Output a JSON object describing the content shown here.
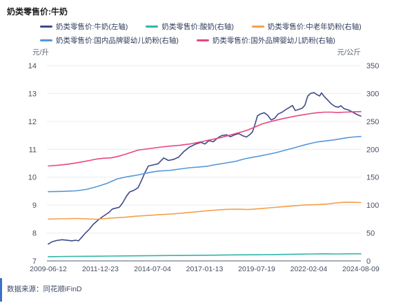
{
  "title": "奶类零售价:牛奶",
  "source_note": "数据来源：同花顺iFinD",
  "axes": {
    "left_unit": "元/升",
    "right_unit": "元/公斤",
    "left_ticks": [
      14,
      13,
      12,
      11,
      10,
      9,
      8,
      7
    ],
    "right_ticks": [
      350,
      300,
      250,
      200,
      150,
      100,
      50,
      0
    ],
    "x_ticks": [
      "2009-06-12",
      "2011-12-23",
      "2014-07-04",
      "2017-01-13",
      "2019-07-19",
      "2022-02-04",
      "2024-08-09"
    ]
  },
  "colors": {
    "grid": "#e8ebf3",
    "axis_line": "#a8adba",
    "tick_text": "#454e60",
    "accent_bar": "#3b6fc9"
  },
  "chart_data": {
    "type": "line",
    "title": "奶类零售价:牛奶",
    "x_range": [
      "2009-06-12",
      "2024-08-09"
    ],
    "x_note": "每个数据点的x为时间轴上0-1的比例位置",
    "left_axis": {
      "unit": "元/升",
      "min": 7,
      "max": 14
    },
    "right_axis": {
      "unit": "元/公斤",
      "min": 0,
      "max": 350
    },
    "grid": true,
    "legend_position": "top",
    "series": [
      {
        "key": "milk",
        "name": "奶类零售价:牛奶(左轴)",
        "axis": "left",
        "color": "#3c4a87",
        "points": [
          [
            0,
            7.6
          ],
          [
            0.011,
            7.68
          ],
          [
            0.026,
            7.73
          ],
          [
            0.044,
            7.76
          ],
          [
            0.06,
            7.74
          ],
          [
            0.075,
            7.72
          ],
          [
            0.088,
            7.74
          ],
          [
            0.097,
            7.72
          ],
          [
            0.108,
            7.86
          ],
          [
            0.119,
            8.0
          ],
          [
            0.13,
            8.12
          ],
          [
            0.143,
            8.3
          ],
          [
            0.159,
            8.46
          ],
          [
            0.172,
            8.57
          ],
          [
            0.185,
            8.67
          ],
          [
            0.194,
            8.74
          ],
          [
            0.205,
            8.86
          ],
          [
            0.219,
            8.9
          ],
          [
            0.227,
            8.92
          ],
          [
            0.238,
            9.08
          ],
          [
            0.249,
            9.3
          ],
          [
            0.26,
            9.47
          ],
          [
            0.274,
            9.53
          ],
          [
            0.287,
            9.62
          ],
          [
            0.298,
            9.88
          ],
          [
            0.309,
            10.16
          ],
          [
            0.32,
            10.4
          ],
          [
            0.336,
            10.44
          ],
          [
            0.351,
            10.48
          ],
          [
            0.369,
            10.69
          ],
          [
            0.384,
            10.6
          ],
          [
            0.402,
            10.64
          ],
          [
            0.417,
            10.72
          ],
          [
            0.433,
            10.91
          ],
          [
            0.45,
            11.07
          ],
          [
            0.47,
            11.18
          ],
          [
            0.488,
            11.25
          ],
          [
            0.501,
            11.19
          ],
          [
            0.514,
            11.31
          ],
          [
            0.528,
            11.27
          ],
          [
            0.541,
            11.4
          ],
          [
            0.554,
            11.49
          ],
          [
            0.57,
            11.52
          ],
          [
            0.583,
            11.45
          ],
          [
            0.596,
            11.52
          ],
          [
            0.609,
            11.56
          ],
          [
            0.623,
            11.48
          ],
          [
            0.634,
            11.44
          ],
          [
            0.645,
            11.53
          ],
          [
            0.653,
            11.62
          ],
          [
            0.662,
            11.92
          ],
          [
            0.669,
            12.2
          ],
          [
            0.678,
            12.26
          ],
          [
            0.691,
            12.31
          ],
          [
            0.702,
            12.22
          ],
          [
            0.713,
            12.05
          ],
          [
            0.724,
            12.11
          ],
          [
            0.735,
            12.26
          ],
          [
            0.748,
            12.33
          ],
          [
            0.762,
            12.44
          ],
          [
            0.773,
            12.51
          ],
          [
            0.781,
            12.57
          ],
          [
            0.79,
            12.39
          ],
          [
            0.801,
            12.43
          ],
          [
            0.812,
            12.47
          ],
          [
            0.821,
            12.58
          ],
          [
            0.83,
            12.91
          ],
          [
            0.839,
            13.0
          ],
          [
            0.85,
            13.03
          ],
          [
            0.859,
            12.96
          ],
          [
            0.868,
            12.91
          ],
          [
            0.874,
            13.02
          ],
          [
            0.883,
            12.89
          ],
          [
            0.894,
            12.76
          ],
          [
            0.905,
            12.63
          ],
          [
            0.918,
            12.53
          ],
          [
            0.929,
            12.51
          ],
          [
            0.936,
            12.56
          ],
          [
            0.947,
            12.45
          ],
          [
            0.958,
            12.42
          ],
          [
            0.969,
            12.36
          ],
          [
            0.98,
            12.29
          ],
          [
            0.991,
            12.23
          ],
          [
            1,
            12.19
          ]
        ]
      },
      {
        "key": "yogurt",
        "name": "奶类零售价:酸奶(右轴)",
        "axis": "right",
        "color": "#2eb5a5",
        "points": [
          [
            0,
            7.5
          ],
          [
            0.066,
            8.0
          ],
          [
            0.132,
            8.3
          ],
          [
            0.199,
            8.6
          ],
          [
            0.265,
            9.0
          ],
          [
            0.333,
            9.4
          ],
          [
            0.397,
            9.7
          ],
          [
            0.464,
            10.0
          ],
          [
            0.53,
            10.3
          ],
          [
            0.596,
            10.7
          ],
          [
            0.667,
            11.0
          ],
          [
            0.729,
            11.4
          ],
          [
            0.795,
            12.0
          ],
          [
            0.839,
            12.4
          ],
          [
            0.883,
            12.7
          ],
          [
            0.923,
            12.4
          ],
          [
            0.96,
            12.7
          ],
          [
            1,
            12.8
          ]
        ]
      },
      {
        "key": "middle-aged-powder",
        "name": "奶类零售价:中老年奶粉(右轴)",
        "axis": "right",
        "color": "#f4a04a",
        "points": [
          [
            0,
            75
          ],
          [
            0.044,
            75.5
          ],
          [
            0.088,
            76
          ],
          [
            0.128,
            75.2
          ],
          [
            0.155,
            74.6
          ],
          [
            0.181,
            75.8
          ],
          [
            0.21,
            77
          ],
          [
            0.243,
            78.2
          ],
          [
            0.278,
            80
          ],
          [
            0.313,
            81.2
          ],
          [
            0.353,
            82.8
          ],
          [
            0.393,
            84
          ],
          [
            0.428,
            85.6
          ],
          [
            0.464,
            87.5
          ],
          [
            0.499,
            89.4
          ],
          [
            0.534,
            91
          ],
          [
            0.57,
            92.4
          ],
          [
            0.605,
            92.6
          ],
          [
            0.64,
            92
          ],
          [
            0.676,
            93.6
          ],
          [
            0.711,
            95.2
          ],
          [
            0.746,
            96.8
          ],
          [
            0.781,
            98.4
          ],
          [
            0.817,
            100
          ],
          [
            0.843,
            100.6
          ],
          [
            0.87,
            101.2
          ],
          [
            0.896,
            102.2
          ],
          [
            0.927,
            104.2
          ],
          [
            0.954,
            105.2
          ],
          [
            0.976,
            105
          ],
          [
            1,
            104.6
          ]
        ]
      },
      {
        "key": "domestic-infant-formula",
        "name": "奶类零售价:国内品牌婴幼儿奶粉(右轴)",
        "axis": "right",
        "color": "#5496d8",
        "points": [
          [
            0,
            124
          ],
          [
            0.044,
            124.5
          ],
          [
            0.088,
            125.5
          ],
          [
            0.121,
            128
          ],
          [
            0.155,
            133
          ],
          [
            0.188,
            139
          ],
          [
            0.221,
            147
          ],
          [
            0.254,
            151
          ],
          [
            0.287,
            154
          ],
          [
            0.32,
            158
          ],
          [
            0.353,
            161
          ],
          [
            0.386,
            162
          ],
          [
            0.419,
            164.5
          ],
          [
            0.453,
            167
          ],
          [
            0.486,
            168.5
          ],
          [
            0.508,
            169.5
          ],
          [
            0.53,
            172
          ],
          [
            0.563,
            175
          ],
          [
            0.596,
            178
          ],
          [
            0.629,
            183
          ],
          [
            0.662,
            186.5
          ],
          [
            0.695,
            190
          ],
          [
            0.729,
            194
          ],
          [
            0.762,
            199
          ],
          [
            0.795,
            204
          ],
          [
            0.821,
            208
          ],
          [
            0.843,
            211
          ],
          [
            0.865,
            213.5
          ],
          [
            0.887,
            215
          ],
          [
            0.91,
            216.5
          ],
          [
            0.932,
            218.5
          ],
          [
            0.954,
            220.5
          ],
          [
            0.976,
            222
          ],
          [
            1,
            223
          ]
        ]
      },
      {
        "key": "foreign-infant-formula",
        "name": "奶类零售价:国外品牌婴幼儿奶粉(右轴)",
        "axis": "right",
        "color": "#e8457f",
        "points": [
          [
            0,
            170
          ],
          [
            0.033,
            171.5
          ],
          [
            0.066,
            173.5
          ],
          [
            0.099,
            176.5
          ],
          [
            0.132,
            180
          ],
          [
            0.155,
            182.5
          ],
          [
            0.177,
            184
          ],
          [
            0.199,
            184.5
          ],
          [
            0.221,
            187
          ],
          [
            0.243,
            190.5
          ],
          [
            0.265,
            194.5
          ],
          [
            0.287,
            198.5
          ],
          [
            0.32,
            201
          ],
          [
            0.353,
            203.5
          ],
          [
            0.386,
            205.5
          ],
          [
            0.419,
            207
          ],
          [
            0.453,
            209.5
          ],
          [
            0.475,
            212
          ],
          [
            0.497,
            214.5
          ],
          [
            0.519,
            217
          ],
          [
            0.552,
            221
          ],
          [
            0.585,
            226
          ],
          [
            0.618,
            231
          ],
          [
            0.64,
            235
          ],
          [
            0.662,
            240
          ],
          [
            0.684,
            245.5
          ],
          [
            0.707,
            249
          ],
          [
            0.729,
            252
          ],
          [
            0.751,
            255
          ],
          [
            0.773,
            257.5
          ],
          [
            0.795,
            260
          ],
          [
            0.817,
            262
          ],
          [
            0.839,
            264
          ],
          [
            0.861,
            265.5
          ],
          [
            0.883,
            266.5
          ],
          [
            0.905,
            266.5
          ],
          [
            0.927,
            266
          ],
          [
            0.949,
            266.5
          ],
          [
            0.971,
            267
          ],
          [
            1,
            267.5
          ]
        ]
      }
    ]
  }
}
